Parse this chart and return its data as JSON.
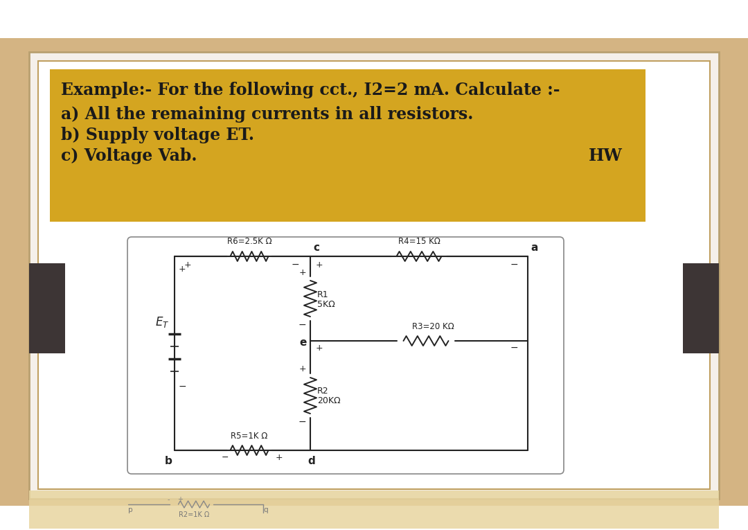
{
  "bg_outer": "#ffffff",
  "bg_wood_light": "#d4b483",
  "bg_wood_dark": "#c8922a",
  "bg_inner_white": "#f0eeec",
  "bg_text_box": "#d4a520",
  "text_color": "#1a1a1a",
  "title_lines": [
    "Example:- For the following cct., I2=2 mA. Calculate :-",
    "a) All the remaining currents in all resistors.",
    "b) Supply voltage ET.",
    "c) Voltage Vab."
  ],
  "hw_label": "HW",
  "dark_panel_color": "#3d3535",
  "circuit_bg": "#ffffff",
  "circuit_border": "#aaaaaa",
  "wire_color": "#222222",
  "bottom_strip_color": "#e8d5a0"
}
